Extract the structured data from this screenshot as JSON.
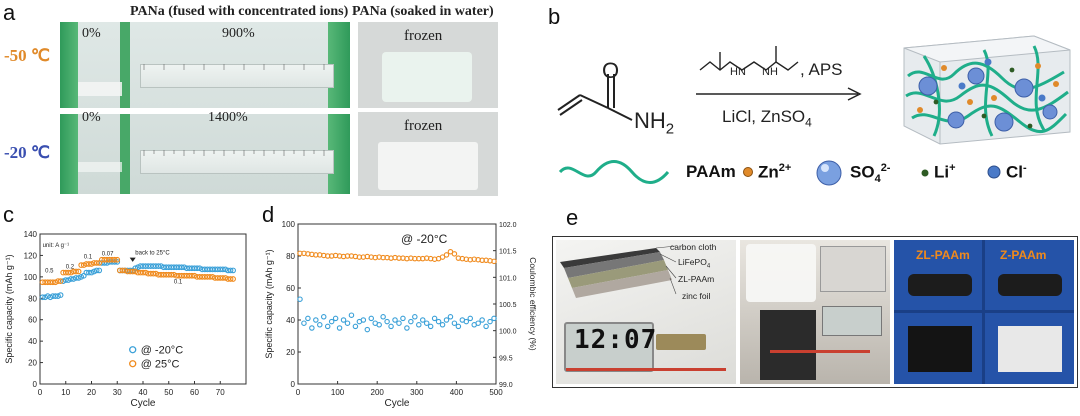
{
  "panel_a": {
    "label": "a",
    "header_left": "PANa (fused with concentrated ions)",
    "header_right": "PANa (soaked in water)",
    "temp_top": "-50 ℃",
    "temp_bottom": "-20 ℃",
    "top_start": "0%",
    "top_stretch": "900%",
    "bottom_start": "0%",
    "bottom_stretch": "1400%",
    "frozen_top": "frozen",
    "frozen_bottom": "frozen",
    "colors": {
      "temp_top": "#e08a2a",
      "temp_bottom": "#3a4fb0"
    }
  },
  "panel_b": {
    "label": "b",
    "reagent_top": ", APS",
    "reagent_bottom": "LiCl,  ZnSO",
    "reagent_bottom_sub": "4",
    "nh2": "NH",
    "nh2_sub": "2",
    "o_atom": "O",
    "hn_left": "H",
    "hn_left2": "N",
    "hn_right": "N",
    "hn_right2": "H",
    "legend": {
      "paam": "PAAm",
      "zn": "Zn",
      "zn_sup": "2+",
      "so4": "SO",
      "so4_sub": "4",
      "so4_sup": "2-",
      "li": "Li",
      "li_sup": "+",
      "cl": "Cl",
      "cl_sup": "-"
    },
    "colors": {
      "polymer": "#1fae8a"
    }
  },
  "panel_c": {
    "label": "c"
  },
  "panel_d": {
    "label": "d"
  },
  "panel_e": {
    "label": "e",
    "carbon_cloth": "carbon cloth",
    "lifepo4": "LiFePO",
    "lifepo4_sub": "4",
    "zl_paam": "ZL-PAAm",
    "zinc_foil": "zinc foil",
    "clock": "12:07",
    "tag_zl": "ZL-PAAm",
    "tag_z": "Z-PAAm"
  },
  "chart_data": [
    {
      "id": "c",
      "type": "scatter",
      "title": "",
      "xlabel": "Cycle",
      "ylabel": "Specific capacity (mAh g⁻¹)",
      "xlim": [
        0,
        80
      ],
      "ylim": [
        0,
        140
      ],
      "xticks": [
        "0",
        "10",
        "20",
        "30",
        "40",
        "50",
        "60",
        "70"
      ],
      "yticks": [
        "0",
        "20",
        "40",
        "60",
        "80",
        "100",
        "120",
        "140"
      ],
      "annotations": {
        "unit": "unit: A g⁻¹",
        "r1": "0.5",
        "r2": "0.2",
        "r3": "0.1",
        "r4": "0.07",
        "back": "back to 25°C",
        "r5": "0.1"
      },
      "legend": [
        "@ -20°C",
        "@ 25°C"
      ],
      "series": [
        {
          "name": "@ -20°C",
          "color": "#3aa0d8",
          "x": [
            1,
            2,
            3,
            4,
            5,
            6,
            7,
            8,
            9,
            10,
            11,
            12,
            13,
            14,
            15,
            16,
            17,
            18,
            19,
            20,
            21,
            22,
            23,
            24,
            25,
            26,
            27,
            28,
            29,
            30,
            31,
            32,
            33,
            34,
            35,
            36,
            37,
            38,
            39,
            40,
            41,
            42,
            43,
            44,
            45,
            46,
            47,
            48,
            49,
            50,
            51,
            52,
            53,
            54,
            55,
            56,
            57,
            58,
            59,
            60,
            61,
            62,
            63,
            64,
            65,
            66,
            67,
            68,
            69,
            70,
            71,
            72,
            73,
            74,
            75
          ],
          "y": [
            81,
            81,
            82,
            81,
            82,
            82,
            82,
            83,
            96,
            97,
            97,
            98,
            98,
            99,
            99,
            100,
            101,
            104,
            104,
            104,
            105,
            106,
            106,
            113,
            113,
            113,
            114,
            114,
            114,
            114,
            106,
            106,
            106,
            106,
            106,
            106,
            108,
            109,
            110,
            110,
            110,
            110,
            110,
            110,
            110,
            110,
            110,
            109,
            109,
            109,
            109,
            109,
            109,
            109,
            109,
            109,
            108,
            108,
            108,
            108,
            108,
            108,
            107,
            107,
            107,
            107,
            107,
            107,
            107,
            107,
            107,
            107,
            106,
            106,
            106
          ]
        },
        {
          "name": "@ 25°C",
          "color": "#f08a1c",
          "x": [
            1,
            2,
            3,
            4,
            5,
            6,
            7,
            8,
            9,
            10,
            11,
            12,
            13,
            14,
            15,
            16,
            17,
            18,
            19,
            20,
            21,
            22,
            23,
            24,
            25,
            26,
            27,
            28,
            29,
            30,
            31,
            32,
            33,
            34,
            35,
            36,
            37,
            38,
            39,
            40,
            41,
            42,
            43,
            44,
            45,
            46,
            47,
            48,
            49,
            50,
            51,
            52,
            53,
            54,
            55,
            56,
            57,
            58,
            59,
            60,
            61,
            62,
            63,
            64,
            65,
            66,
            67,
            68,
            69,
            70,
            71,
            72,
            73,
            74,
            75
          ],
          "y": [
            95,
            95,
            95,
            95,
            95,
            95,
            96,
            96,
            104,
            104,
            104,
            104,
            105,
            105,
            105,
            111,
            111,
            112,
            112,
            112,
            113,
            113,
            113,
            116,
            116,
            116,
            116,
            116,
            116,
            116,
            106,
            106,
            106,
            105,
            105,
            105,
            105,
            104,
            104,
            104,
            104,
            103,
            103,
            103,
            103,
            102,
            102,
            102,
            102,
            102,
            102,
            102,
            101,
            101,
            101,
            101,
            101,
            101,
            101,
            101,
            100,
            100,
            100,
            100,
            100,
            100,
            100,
            99,
            99,
            99,
            99,
            99,
            98,
            98,
            98
          ]
        }
      ]
    },
    {
      "id": "d",
      "type": "scatter",
      "title": "",
      "xlabel": "Cycle",
      "ylabel": "Specific capacity (mAh g⁻¹)",
      "ylabel_right": "Coulombic efficiency (%)",
      "xlim": [
        0,
        500
      ],
      "ylim": [
        0,
        100
      ],
      "ylim_right": [
        99.0,
        102.0
      ],
      "xticks": [
        "0",
        "100",
        "200",
        "300",
        "400",
        "500"
      ],
      "yticks": [
        "0",
        "20",
        "40",
        "60",
        "80",
        "100"
      ],
      "yticks_right": [
        "99.0",
        "99.5",
        "100.0",
        "100.5",
        "101.0",
        "101.5",
        "102.0"
      ],
      "annotation": "@ -20°C",
      "series": [
        {
          "name": "Specific capacity",
          "color": "#3aa0d8",
          "axis": "left",
          "x": [
            5,
            15,
            25,
            35,
            45,
            55,
            65,
            75,
            85,
            95,
            105,
            115,
            125,
            135,
            145,
            155,
            165,
            175,
            185,
            195,
            205,
            215,
            225,
            235,
            245,
            255,
            265,
            275,
            285,
            295,
            305,
            315,
            325,
            335,
            345,
            355,
            365,
            375,
            385,
            395,
            405,
            415,
            425,
            435,
            445,
            455,
            465,
            475,
            485,
            495
          ],
          "y": [
            53,
            38,
            41,
            35,
            40,
            37,
            42,
            36,
            39,
            41,
            35,
            40,
            38,
            43,
            36,
            39,
            40,
            34,
            41,
            38,
            37,
            42,
            39,
            36,
            40,
            38,
            41,
            35,
            39,
            42,
            37,
            40,
            38,
            36,
            41,
            39,
            37,
            40,
            42,
            38,
            36,
            40,
            39,
            41,
            37,
            38,
            40,
            36,
            39,
            41
          ]
        },
        {
          "name": "Coulombic efficiency",
          "color": "#f08a1c",
          "axis": "right",
          "x": [
            5,
            15,
            25,
            35,
            45,
            55,
            65,
            75,
            85,
            95,
            105,
            115,
            125,
            135,
            145,
            155,
            165,
            175,
            185,
            195,
            205,
            215,
            225,
            235,
            245,
            255,
            265,
            275,
            285,
            295,
            305,
            315,
            325,
            335,
            345,
            355,
            365,
            375,
            385,
            395,
            405,
            415,
            425,
            435,
            445,
            455,
            465,
            475,
            485,
            495
          ],
          "y": [
            101.45,
            101.45,
            101.44,
            101.43,
            101.42,
            101.42,
            101.41,
            101.4,
            101.4,
            101.41,
            101.4,
            101.39,
            101.4,
            101.4,
            101.39,
            101.38,
            101.38,
            101.39,
            101.38,
            101.37,
            101.38,
            101.37,
            101.37,
            101.36,
            101.37,
            101.36,
            101.36,
            101.35,
            101.36,
            101.35,
            101.35,
            101.35,
            101.36,
            101.35,
            101.34,
            101.35,
            101.38,
            101.42,
            101.48,
            101.44,
            101.36,
            101.35,
            101.34,
            101.33,
            101.34,
            101.33,
            101.32,
            101.32,
            101.31,
            101.3
          ]
        }
      ]
    }
  ]
}
